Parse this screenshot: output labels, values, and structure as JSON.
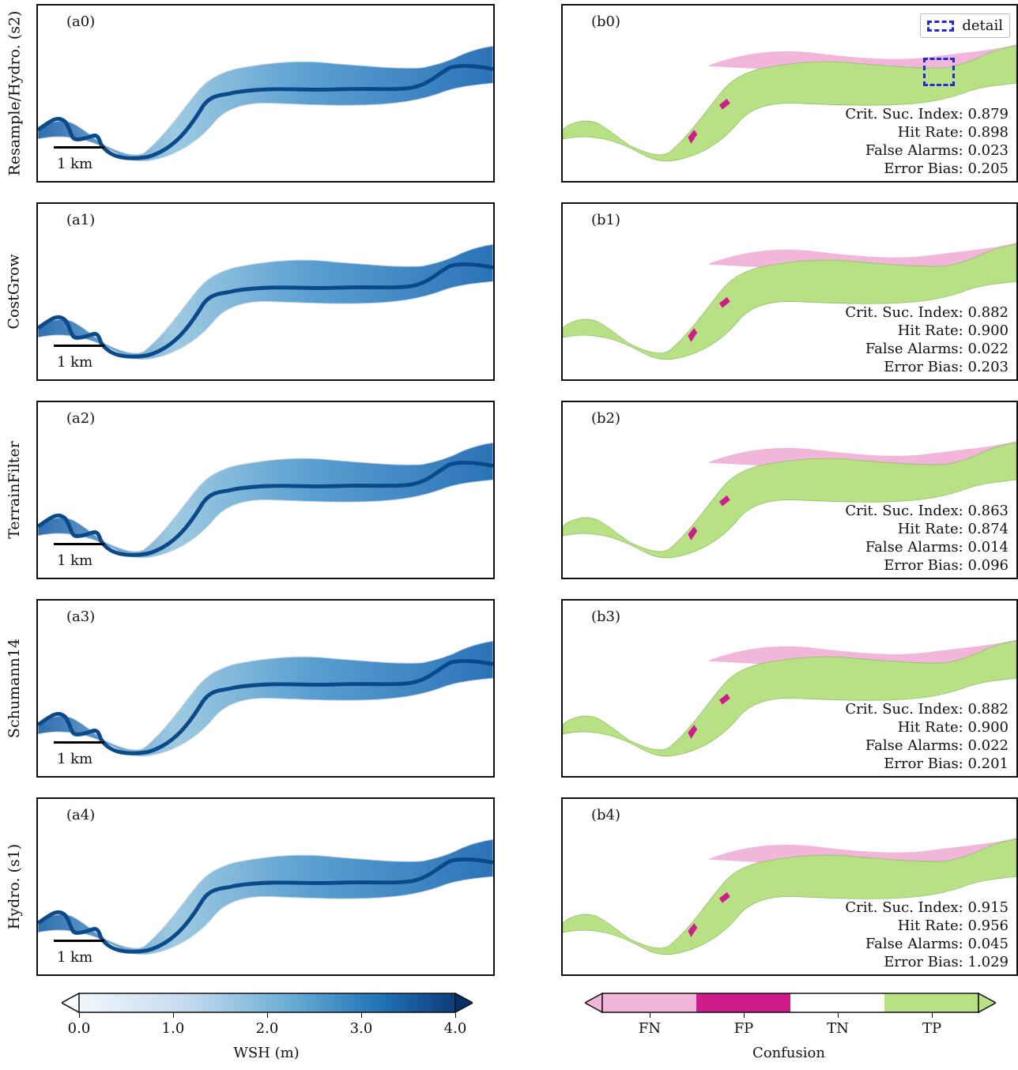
{
  "rows": [
    {
      "label": "Resample/Hydro. (s2)",
      "a_label": "(a0)",
      "b_label": "(b0)",
      "metrics": {
        "csi": "Crit. Suc. Index: 0.879",
        "hit": "Hit Rate: 0.898",
        "fa": "False Alarms: 0.023",
        "eb": "Error Bias: 0.205"
      }
    },
    {
      "label": "CostGrow",
      "a_label": "(a1)",
      "b_label": "(b1)",
      "metrics": {
        "csi": "Crit. Suc. Index: 0.882",
        "hit": "Hit Rate: 0.900",
        "fa": "False Alarms: 0.022",
        "eb": "Error Bias: 0.203"
      }
    },
    {
      "label": "TerrainFilter",
      "a_label": "(a2)",
      "b_label": "(b2)",
      "metrics": {
        "csi": "Crit. Suc. Index: 0.863",
        "hit": "Hit Rate: 0.874",
        "fa": "False Alarms: 0.014",
        "eb": "Error Bias: 0.096"
      }
    },
    {
      "label": "Schumann14",
      "a_label": "(a3)",
      "b_label": "(b3)",
      "metrics": {
        "csi": "Crit. Suc. Index: 0.882",
        "hit": "Hit Rate: 0.900",
        "fa": "False Alarms: 0.022",
        "eb": "Error Bias: 0.201"
      }
    },
    {
      "label": "Hydro. (s1)",
      "a_label": "(a4)",
      "b_label": "(b4)",
      "metrics": {
        "csi": "Crit. Suc. Index: 0.915",
        "hit": "Hit Rate: 0.956",
        "fa": "False Alarms: 0.045",
        "eb": "Error Bias: 1.029"
      }
    }
  ],
  "scale_label": "1 km",
  "legend_label": "detail",
  "wsh_colorbar": {
    "title": "WSH (m)",
    "ticks": [
      "0.0",
      "1.0",
      "2.0",
      "3.0",
      "4.0"
    ],
    "colors": [
      "#f7fbff",
      "#c6dbef",
      "#6baed6",
      "#2171b5",
      "#08306b"
    ]
  },
  "confusion_colorbar": {
    "title": "Confusion",
    "categories": [
      "FN",
      "FP",
      "TN",
      "TP"
    ],
    "colors": {
      "FN": "#f1b6da",
      "FP": "#d01c8b",
      "TN": "#ffffff",
      "TP": "#b8e186"
    }
  },
  "colors": {
    "river": "#0b4a8a",
    "detail_box": "#1f2bd6"
  }
}
